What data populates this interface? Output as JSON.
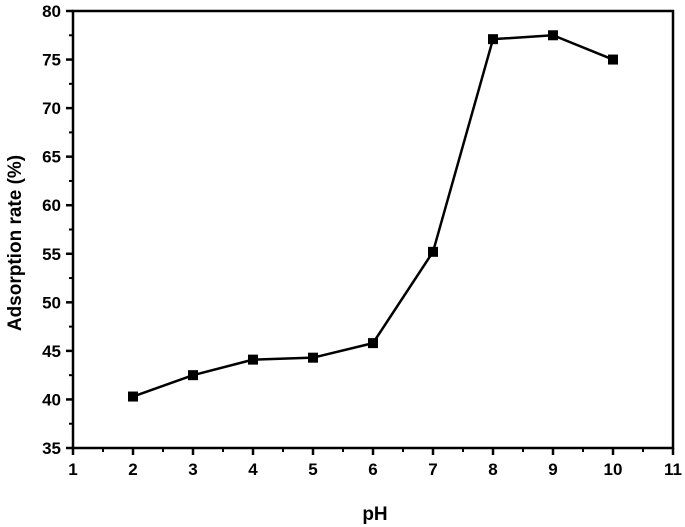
{
  "chart_data": {
    "type": "line",
    "title": "",
    "xlabel": "pH",
    "ylabel": "Adsorption rate (%)",
    "xlim": [
      1,
      11
    ],
    "ylim": [
      35,
      80
    ],
    "x_ticks": [
      1,
      2,
      3,
      4,
      5,
      6,
      7,
      8,
      9,
      10,
      11
    ],
    "y_ticks": [
      35,
      40,
      45,
      50,
      55,
      60,
      65,
      70,
      75,
      80
    ],
    "grid": false,
    "legend": null,
    "marker": "square",
    "series": [
      {
        "name": "Adsorption rate",
        "x": [
          2,
          3,
          4,
          5,
          6,
          7,
          8,
          9,
          10
        ],
        "values": [
          40.3,
          42.5,
          44.1,
          44.3,
          45.8,
          55.2,
          77.1,
          77.5,
          75.0
        ]
      }
    ]
  },
  "colors": {
    "line": "#000000",
    "marker": "#000000",
    "axis": "#000000",
    "background": "#ffffff"
  }
}
